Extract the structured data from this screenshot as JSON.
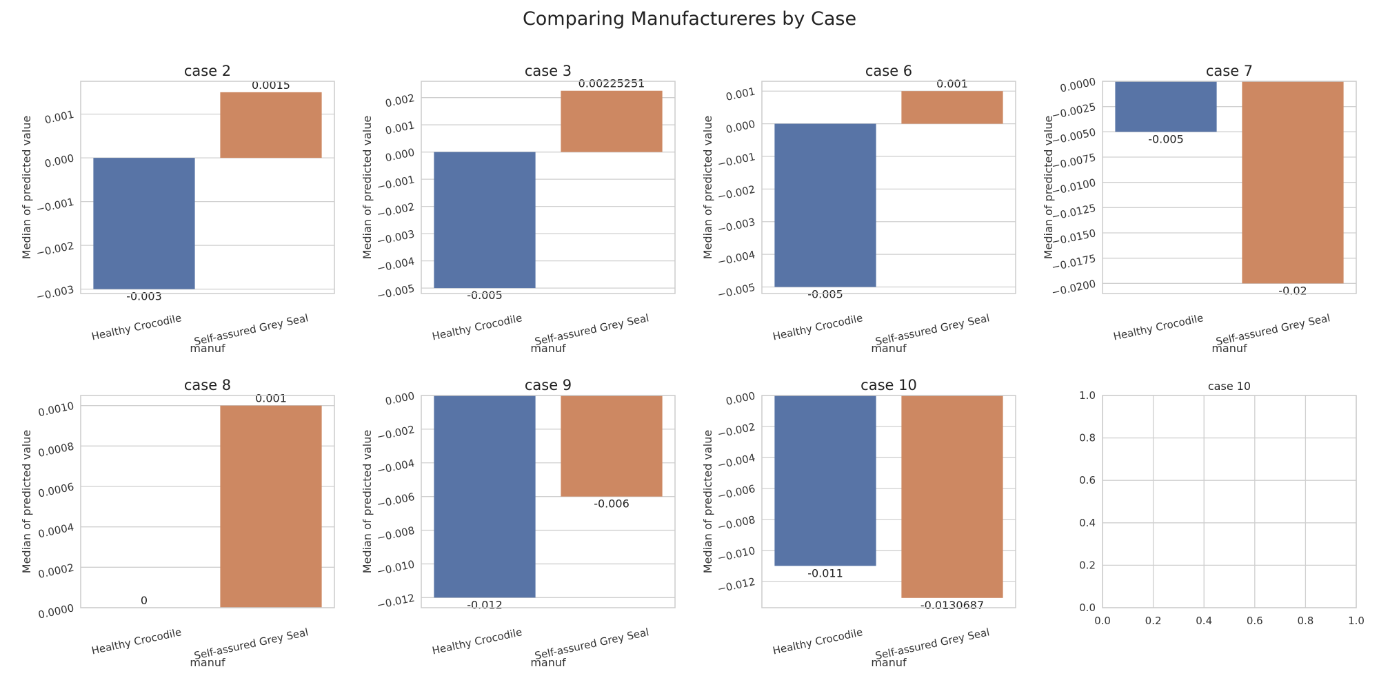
{
  "chart_data": {
    "suptitle": "Comparing Manufactureres by Case",
    "colors": {
      "Healthy Crocodile": "#5874a6",
      "Self-assured Grey Seal": "#cd8862"
    },
    "panels": [
      {
        "type": "bar",
        "title": "case 2",
        "categories": [
          "Healthy Crocodile",
          "Self-assured Grey Seal"
        ],
        "values": [
          -0.003,
          0.0015
        ],
        "value_labels": [
          "-0.003",
          "0.0015"
        ],
        "ylim": [
          -0.0031,
          0.00175
        ],
        "yticks": [
          -0.003,
          -0.002,
          -0.001,
          0.0,
          0.001
        ],
        "ytick_labels": [
          "−0.003",
          "−0.002",
          "−0.001",
          "0.000",
          "0.001"
        ],
        "xlabel": "manuf",
        "ylabel": "Median of predicted value"
      },
      {
        "type": "bar",
        "title": "case 3",
        "categories": [
          "Healthy Crocodile",
          "Self-assured Grey Seal"
        ],
        "values": [
          -0.005,
          0.00225251
        ],
        "value_labels": [
          "-0.005",
          "0.00225251"
        ],
        "ylim": [
          -0.0052,
          0.0026
        ],
        "yticks": [
          -0.005,
          -0.004,
          -0.003,
          -0.002,
          -0.001,
          0.0,
          0.001,
          0.002
        ],
        "ytick_labels": [
          "−0.005",
          "−0.004",
          "−0.003",
          "−0.002",
          "−0.001",
          "0.000",
          "0.001",
          "0.002"
        ],
        "xlabel": "manuf",
        "ylabel": "Median of predicted value"
      },
      {
        "type": "bar",
        "title": "case 6",
        "categories": [
          "Healthy Crocodile",
          "Self-assured Grey Seal"
        ],
        "values": [
          -0.005,
          0.001
        ],
        "value_labels": [
          "-0.005",
          "0.001"
        ],
        "ylim": [
          -0.0052,
          0.0013
        ],
        "yticks": [
          -0.005,
          -0.004,
          -0.003,
          -0.002,
          -0.001,
          0.0,
          0.001
        ],
        "ytick_labels": [
          "−0.005",
          "−0.004",
          "−0.003",
          "−0.002",
          "−0.001",
          "0.000",
          "0.001"
        ],
        "xlabel": "manuf",
        "ylabel": "Median of predicted value"
      },
      {
        "type": "bar",
        "title": "case 7",
        "categories": [
          "Healthy Crocodile",
          "Self-assured Grey Seal"
        ],
        "values": [
          -0.005,
          -0.02
        ],
        "value_labels": [
          "-0.005",
          "-0.02"
        ],
        "ylim": [
          -0.021,
          0.0
        ],
        "yticks": [
          -0.02,
          -0.0175,
          -0.015,
          -0.0125,
          -0.01,
          -0.0075,
          -0.005,
          -0.0025,
          0.0
        ],
        "ytick_labels": [
          "−0.0200",
          "−0.0175",
          "−0.0150",
          "−0.0125",
          "−0.0100",
          "−0.0075",
          "−0.0050",
          "−0.0025",
          "0.0000"
        ],
        "xlabel": "manuf",
        "ylabel": "Median of predicted value"
      },
      {
        "type": "bar",
        "title": "case 8",
        "categories": [
          "Healthy Crocodile",
          "Self-assured Grey Seal"
        ],
        "values": [
          0,
          0.001
        ],
        "value_labels": [
          "0",
          "0.001"
        ],
        "ylim": [
          0.0,
          0.00105
        ],
        "yticks": [
          0.0,
          0.0002,
          0.0004,
          0.0006,
          0.0008,
          0.001
        ],
        "ytick_labels": [
          "0.0000",
          "0.0002",
          "0.0004",
          "0.0006",
          "0.0008",
          "0.0010"
        ],
        "xlabel": "manuf",
        "ylabel": "Median of predicted value"
      },
      {
        "type": "bar",
        "title": "case 9",
        "categories": [
          "Healthy Crocodile",
          "Self-assured Grey Seal"
        ],
        "values": [
          -0.012,
          -0.006
        ],
        "value_labels": [
          "-0.012",
          "-0.006"
        ],
        "ylim": [
          -0.0126,
          0.0
        ],
        "yticks": [
          -0.012,
          -0.01,
          -0.008,
          -0.006,
          -0.004,
          -0.002,
          0.0
        ],
        "ytick_labels": [
          "−0.012",
          "−0.010",
          "−0.008",
          "−0.006",
          "−0.004",
          "−0.002",
          "0.000"
        ],
        "xlabel": "manuf",
        "ylabel": "Median of predicted value"
      },
      {
        "type": "bar",
        "title": "case 10",
        "categories": [
          "Healthy Crocodile",
          "Self-assured Grey Seal"
        ],
        "values": [
          -0.011,
          -0.0130687
        ],
        "value_labels": [
          "-0.011",
          "-0.0130687"
        ],
        "ylim": [
          -0.0137,
          0.0
        ],
        "yticks": [
          -0.012,
          -0.01,
          -0.008,
          -0.006,
          -0.004,
          -0.002,
          0.0
        ],
        "ytick_labels": [
          "−0.012",
          "−0.010",
          "−0.008",
          "−0.006",
          "−0.004",
          "−0.002",
          "0.000"
        ],
        "xlabel": "manuf",
        "ylabel": "Median of predicted value"
      },
      {
        "type": "empty",
        "title": "case 10",
        "xlim": [
          0,
          1
        ],
        "ylim": [
          0,
          1
        ],
        "xticks": [
          0,
          0.2,
          0.4,
          0.6,
          0.8,
          1.0
        ],
        "xtick_labels": [
          "0.0",
          "0.2",
          "0.4",
          "0.6",
          "0.8",
          "1.0"
        ],
        "yticks": [
          0,
          0.2,
          0.4,
          0.6,
          0.8,
          1.0
        ],
        "ytick_labels": [
          "0.0",
          "0.2",
          "0.4",
          "0.6",
          "0.8",
          "1.0"
        ]
      }
    ]
  }
}
